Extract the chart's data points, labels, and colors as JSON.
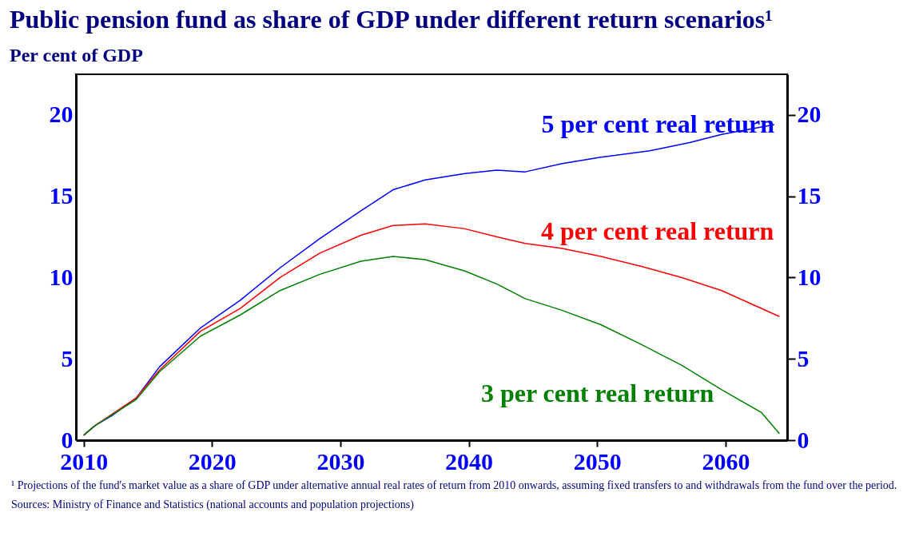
{
  "chart_data": {
    "type": "line",
    "title": "Public pension fund as share of GDP under different return scenarios¹",
    "subtitle": "Per cent of GDP",
    "xlim": [
      2009.4,
      2064.8
    ],
    "xticks": [
      2010,
      2020,
      2030,
      2040,
      2050,
      2060
    ],
    "ylim": [
      0,
      22.5
    ],
    "yticks": [
      0,
      5,
      10,
      15,
      20
    ],
    "y2lim": [
      0,
      22.5
    ],
    "y2ticks": [
      0,
      5,
      10,
      15,
      20
    ],
    "grid": false,
    "series": [
      {
        "name": "5 per cent real return",
        "color": "#0000ff",
        "x": [
          2010,
          2010.9,
          2012.2,
          2014.1,
          2015.9,
          2019.1,
          2022.2,
          2025.3,
          2028.4,
          2031.6,
          2034.1,
          2036.6,
          2039.7,
          2042.2,
          2044.4,
          2047.2,
          2050.3,
          2054.1,
          2057.2,
          2059.7,
          2063.8
        ],
        "values": [
          0.3,
          0.9,
          1.5,
          2.6,
          4.5,
          6.9,
          8.6,
          10.6,
          12.4,
          14.1,
          15.4,
          16.0,
          16.4,
          16.6,
          16.5,
          17.0,
          17.4,
          17.8,
          18.3,
          18.8,
          19.4
        ]
      },
      {
        "name": "4 per cent real return",
        "color": "#ff0000",
        "x": [
          2010,
          2010.9,
          2014.1,
          2015.9,
          2019.1,
          2022.2,
          2025.3,
          2028.4,
          2031.6,
          2034.1,
          2036.6,
          2039.7,
          2042.2,
          2044.4,
          2047.2,
          2050.3,
          2053.4,
          2056.6,
          2059.7,
          2064.2
        ],
        "values": [
          0.3,
          0.9,
          2.6,
          4.3,
          6.7,
          8.1,
          10.0,
          11.5,
          12.6,
          13.2,
          13.3,
          13.0,
          12.5,
          12.1,
          11.8,
          11.3,
          10.7,
          10.0,
          9.2,
          7.6
        ]
      },
      {
        "name": "3 per cent real return",
        "color": "#008000",
        "x": [
          2010,
          2010.9,
          2014.1,
          2015.9,
          2019.1,
          2022.2,
          2025.3,
          2028.4,
          2031.6,
          2034.1,
          2036.6,
          2039.7,
          2042.2,
          2044.4,
          2047.2,
          2050.3,
          2053.4,
          2056.6,
          2059.7,
          2062.8,
          2064.2
        ],
        "values": [
          0.3,
          0.9,
          2.5,
          4.2,
          6.4,
          7.7,
          9.2,
          10.2,
          11.0,
          11.3,
          11.1,
          10.4,
          9.6,
          8.7,
          8.0,
          7.1,
          5.9,
          4.6,
          3.1,
          1.7,
          0.4
        ]
      }
    ],
    "annotations": [
      "¹ Projections of the fund's market value as a share of GDP under alternative annual real rates of return from 2010 onwards, assuming fixed transfers to and withdrawals from the fund over the period.",
      "Sources: Ministry of Finance and Statistics (national accounts and population projections)"
    ]
  }
}
